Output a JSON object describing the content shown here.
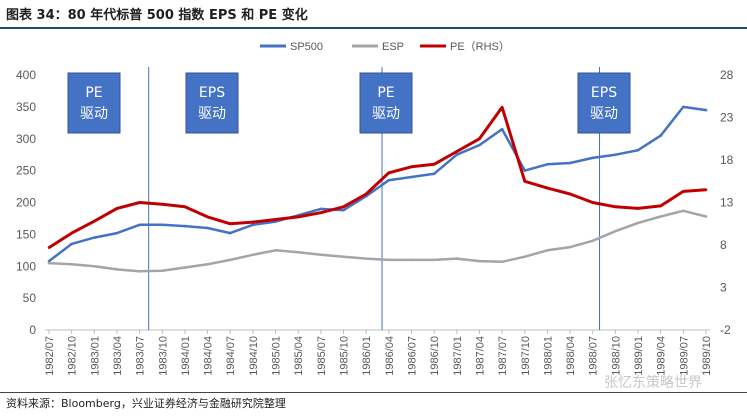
{
  "header": {
    "title": "图表 34：80 年代标普 500 指数 EPS 和 PE 变化"
  },
  "footer": {
    "source": "资料来源：Bloomberg，兴业证券经济与金融研究院整理",
    "watermark": "张忆东策略世界"
  },
  "chart_data": {
    "type": "line",
    "x": [
      "1982/07",
      "1982/10",
      "1983/01",
      "1983/04",
      "1983/07",
      "1983/10",
      "1984/01",
      "1984/04",
      "1984/07",
      "1984/10",
      "1985/01",
      "1985/04",
      "1985/07",
      "1985/10",
      "1986/01",
      "1986/04",
      "1986/07",
      "1986/10",
      "1987/01",
      "1987/04",
      "1987/07",
      "1987/10",
      "1988/01",
      "1988/04",
      "1988/07",
      "1988/10",
      "1989/01",
      "1989/04",
      "1989/07",
      "1989/10"
    ],
    "series": [
      {
        "name": "SP500",
        "axis": "left",
        "color": "#4472c4",
        "values": [
          108,
          135,
          145,
          152,
          165,
          165,
          163,
          160,
          152,
          165,
          170,
          180,
          190,
          188,
          210,
          235,
          240,
          245,
          275,
          290,
          315,
          250,
          260,
          262,
          270,
          275,
          282,
          305,
          350,
          345
        ]
      },
      {
        "name": "ESP",
        "axis": "left",
        "color": "#a5a5a5",
        "values": [
          105,
          103,
          100,
          95,
          92,
          93,
          98,
          103,
          110,
          118,
          125,
          122,
          118,
          115,
          112,
          110,
          110,
          110,
          112,
          108,
          107,
          115,
          125,
          130,
          140,
          155,
          168,
          178,
          187,
          178
        ]
      },
      {
        "name": "PE（RHS）",
        "axis": "right",
        "color": "#c00000",
        "values": [
          7.7,
          9.4,
          10.8,
          12.3,
          13.0,
          12.8,
          12.5,
          11.3,
          10.5,
          10.7,
          11.0,
          11.3,
          11.8,
          12.5,
          14.0,
          16.5,
          17.2,
          17.5,
          19.0,
          20.5,
          24.2,
          15.5,
          14.7,
          14.0,
          13.0,
          12.5,
          12.3,
          12.6,
          14.3,
          14.5
        ]
      }
    ],
    "left_axis": {
      "ylim": [
        0,
        400
      ],
      "ticks": [
        "0",
        "50",
        "100",
        "150",
        "200",
        "250",
        "300",
        "350",
        "400"
      ]
    },
    "right_axis": {
      "ylim": [
        -2,
        28
      ],
      "ticks": [
        "-2",
        "3",
        "8",
        "13",
        "18",
        "23",
        "28"
      ]
    },
    "legend_position": "top-right",
    "grid": false,
    "annotations": [
      {
        "line1": "PE",
        "line2": "驱动"
      },
      {
        "line1": "EPS",
        "line2": "驱动"
      },
      {
        "line1": "PE",
        "line2": "驱动"
      },
      {
        "line1": "EPS",
        "line2": "驱动"
      }
    ],
    "annotation_color": "#4472c4"
  }
}
